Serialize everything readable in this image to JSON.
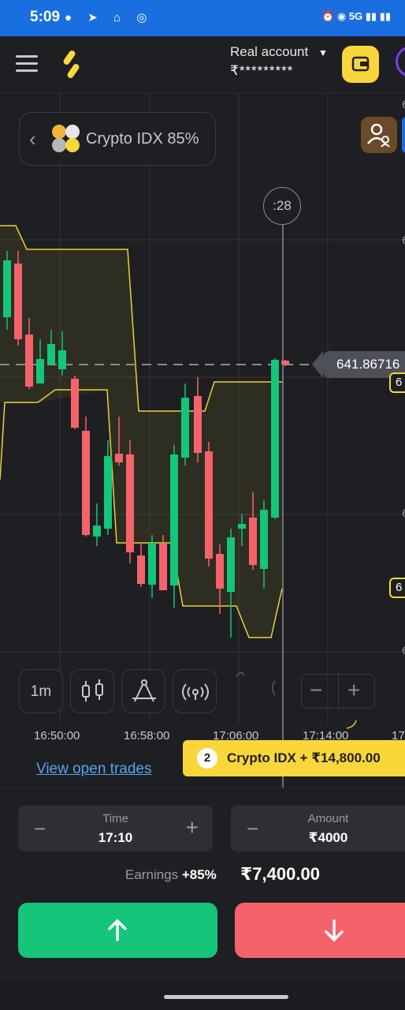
{
  "status_bar": {
    "time": "5:09",
    "left_icons": [
      "dictation-icon",
      "telegram-icon",
      "notification-icon",
      "hotspot-icon"
    ],
    "right_text": "5G"
  },
  "header": {
    "account_label": "Real account",
    "balance_masked": "₹*********"
  },
  "chart": {
    "asset_name": "Crypto IDX 85%",
    "timer": ":28",
    "current_price": "641.86716",
    "right_tick_label": "6",
    "timeframe": "1m",
    "time_labels": [
      "16:50:00",
      "16:58:00",
      "17:06:00",
      "17:14:00",
      "17"
    ]
  },
  "trades": {
    "view_open_trades": "View open trades",
    "badge_count": "2",
    "badge_text": "Crypto IDX + ₹14,800.00"
  },
  "controls": {
    "time_label": "Time",
    "time_value": "17:10",
    "amount_label": "Amount",
    "amount_value": "₹4000",
    "earnings_label": "Earnings",
    "earnings_percent": "+85%",
    "payout": "₹7,400.00"
  },
  "colors": {
    "up": "#14c57a",
    "down": "#f5636a",
    "accent": "#f9d63a",
    "status_bar": "#1a6fe0"
  }
}
